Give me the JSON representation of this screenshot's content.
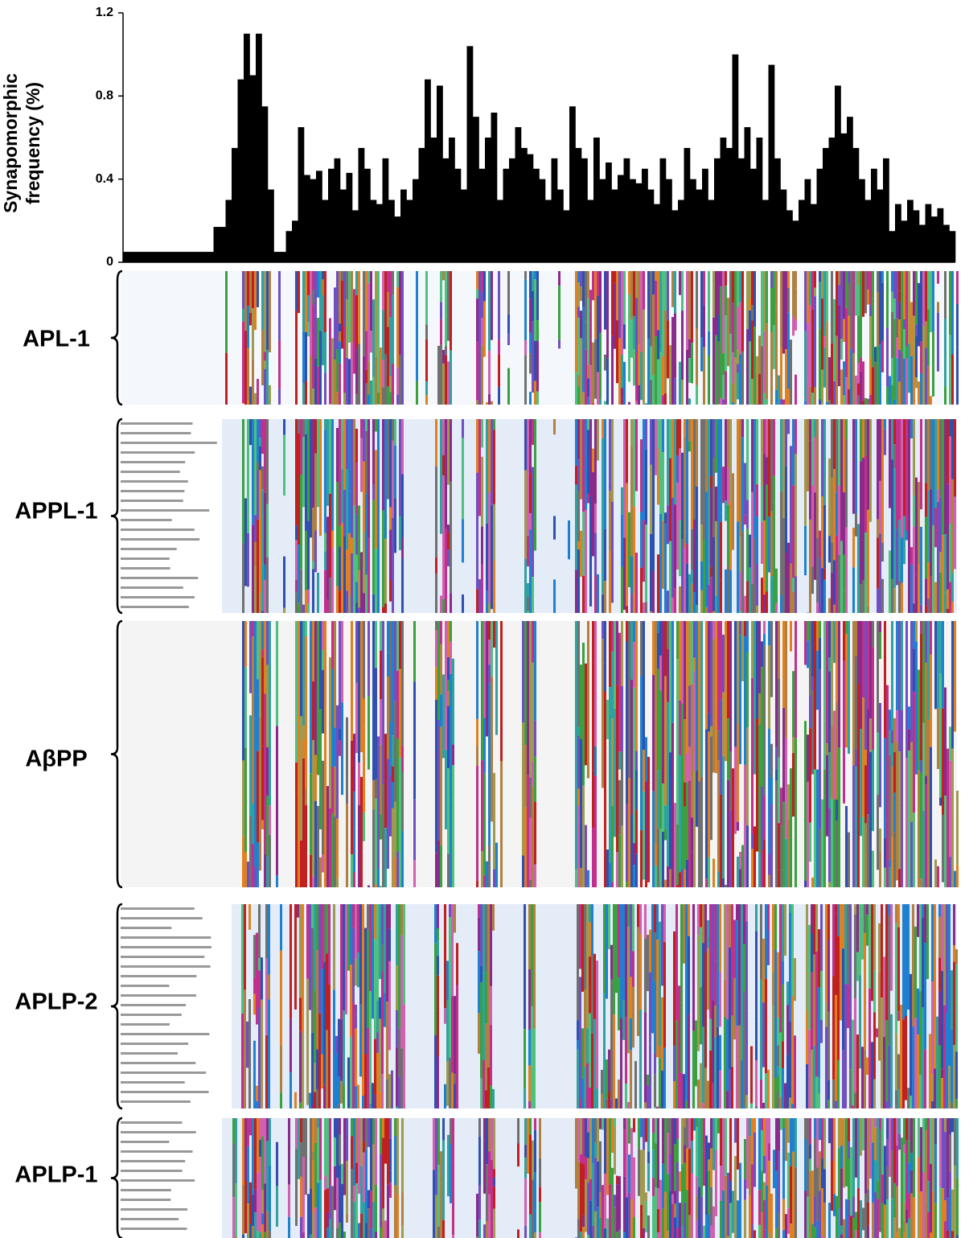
{
  "chart_data": {
    "type": "bar",
    "ylabel": "Synapomorphic frequency (%)",
    "ylim": [
      0,
      1.2
    ],
    "yticks": [
      0,
      0.4,
      0.8,
      1.2
    ],
    "color": "#000000",
    "values": [
      0.05,
      0.05,
      0.05,
      0.05,
      0.05,
      0.05,
      0.05,
      0.05,
      0.05,
      0.05,
      0.05,
      0.05,
      0.05,
      0.05,
      0.05,
      0.17,
      0.17,
      0.3,
      0.55,
      0.88,
      1.1,
      0.9,
      1.1,
      0.75,
      0.35,
      0.05,
      0.05,
      0.15,
      0.2,
      0.65,
      0.42,
      0.4,
      0.44,
      0.3,
      0.45,
      0.5,
      0.35,
      0.43,
      0.25,
      0.55,
      0.45,
      0.3,
      0.28,
      0.5,
      0.3,
      0.22,
      0.35,
      0.3,
      0.4,
      0.55,
      0.88,
      0.6,
      0.85,
      0.5,
      0.6,
      0.45,
      0.35,
      1.04,
      0.7,
      0.45,
      0.6,
      0.72,
      0.3,
      0.45,
      0.5,
      0.65,
      0.55,
      0.52,
      0.45,
      0.4,
      0.3,
      0.5,
      0.35,
      0.25,
      0.75,
      0.55,
      0.5,
      0.3,
      0.6,
      0.4,
      0.48,
      0.35,
      0.42,
      0.5,
      0.4,
      0.38,
      0.45,
      0.35,
      0.28,
      0.5,
      0.4,
      0.25,
      0.3,
      0.55,
      0.4,
      0.35,
      0.45,
      0.3,
      0.5,
      0.6,
      0.55,
      1.0,
      0.5,
      0.65,
      0.45,
      0.6,
      0.3,
      0.95,
      0.5,
      0.35,
      0.25,
      0.2,
      0.3,
      0.4,
      0.28,
      0.45,
      0.55,
      0.6,
      0.85,
      0.62,
      0.7,
      0.55,
      0.4,
      0.3,
      0.45,
      0.35,
      0.5,
      0.15,
      0.28,
      0.2,
      0.3,
      0.25,
      0.18,
      0.28,
      0.22,
      0.26,
      0.18,
      0.15
    ]
  },
  "panels": [
    {
      "label": "APL-1"
    },
    {
      "label": "APPL-1"
    },
    {
      "label": "AβPP"
    },
    {
      "label": "APLP-2"
    },
    {
      "label": "APLP-1"
    }
  ]
}
